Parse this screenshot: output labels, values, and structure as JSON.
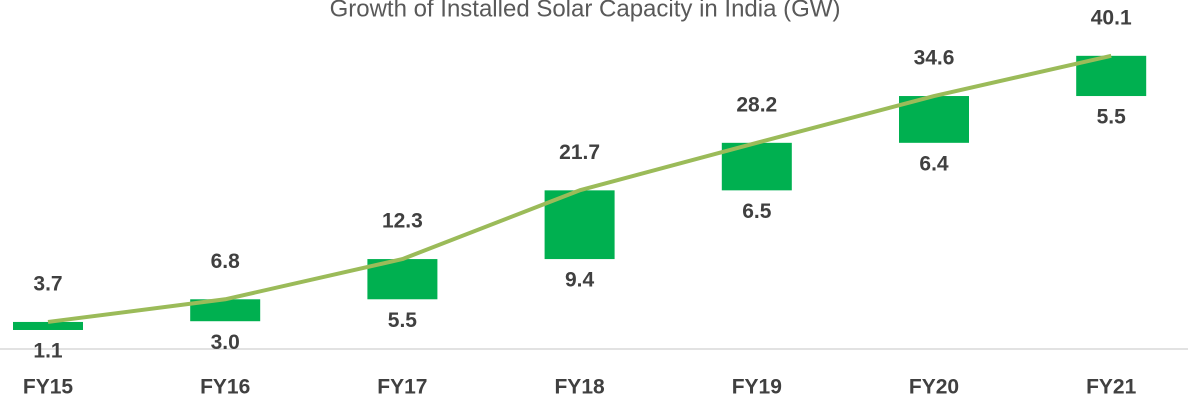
{
  "chart_data": {
    "type": "waterfall-line",
    "title": "Growth of Installed Solar Capacity in India (GW)",
    "categories": [
      "FY15",
      "FY16",
      "FY17",
      "FY18",
      "FY19",
      "FY20",
      "FY21"
    ],
    "series": [
      {
        "type": "line",
        "color": "#9bbb59",
        "values": [
          3.7,
          6.8,
          12.3,
          21.7,
          28.2,
          34.6,
          40.1
        ],
        "value_labels": [
          "3.7",
          "6.8",
          "12.3",
          "21.7",
          "28.2",
          "34.6",
          "40.1"
        ]
      },
      {
        "type": "bar",
        "color": "#00b050",
        "values": [
          1.1,
          3.0,
          5.5,
          9.4,
          6.5,
          6.4,
          5.5
        ],
        "value_labels": [
          "1.1",
          "3.0",
          "5.5",
          "9.4",
          "6.5",
          "6.4",
          "5.5"
        ]
      }
    ],
    "ylim": [
      0,
      45
    ]
  }
}
